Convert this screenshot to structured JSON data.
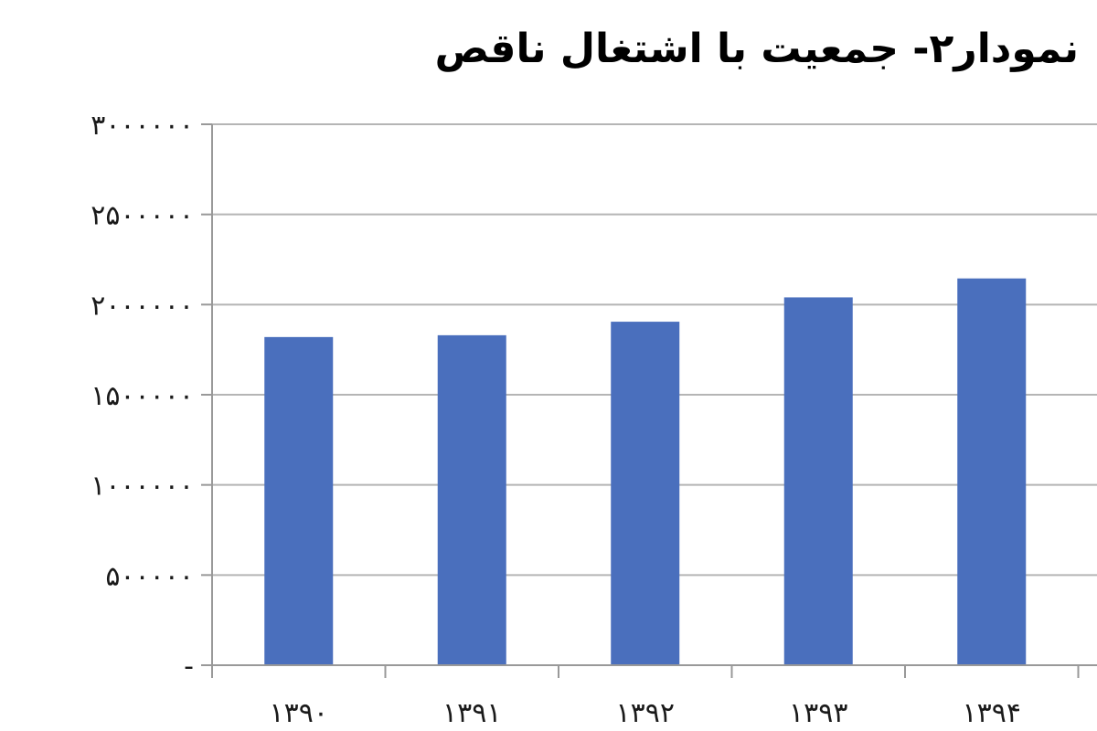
{
  "chart_data": {
    "type": "bar",
    "title": "نمودار۲- جمعیت با اشتغال ناقص",
    "categories": [
      "۱۳۹۰",
      "۱۳۹۱",
      "۱۳۹۲",
      "۱۳۹۳",
      "۱۳۹۴"
    ],
    "series": [
      {
        "values": [
          1820000,
          1830000,
          1905000,
          2040000,
          2145000
        ]
      }
    ],
    "y_tick_values": [
      0,
      500000,
      1000000,
      1500000,
      2000000,
      2500000,
      3000000
    ],
    "y_tick_labels": [
      "-",
      "۵۰۰۰۰۰",
      "۱۰۰۰۰۰۰",
      "۱۵۰۰۰۰۰",
      "۲۰۰۰۰۰۰",
      "۲۵۰۰۰۰۰",
      "۳۰۰۰۰۰۰"
    ],
    "ylim": [
      0,
      3000000
    ],
    "grid": true,
    "legend": "none",
    "bar_color": "#4a6fbd",
    "grid_color": "#b5b5b5",
    "axis_color": "#999999"
  }
}
